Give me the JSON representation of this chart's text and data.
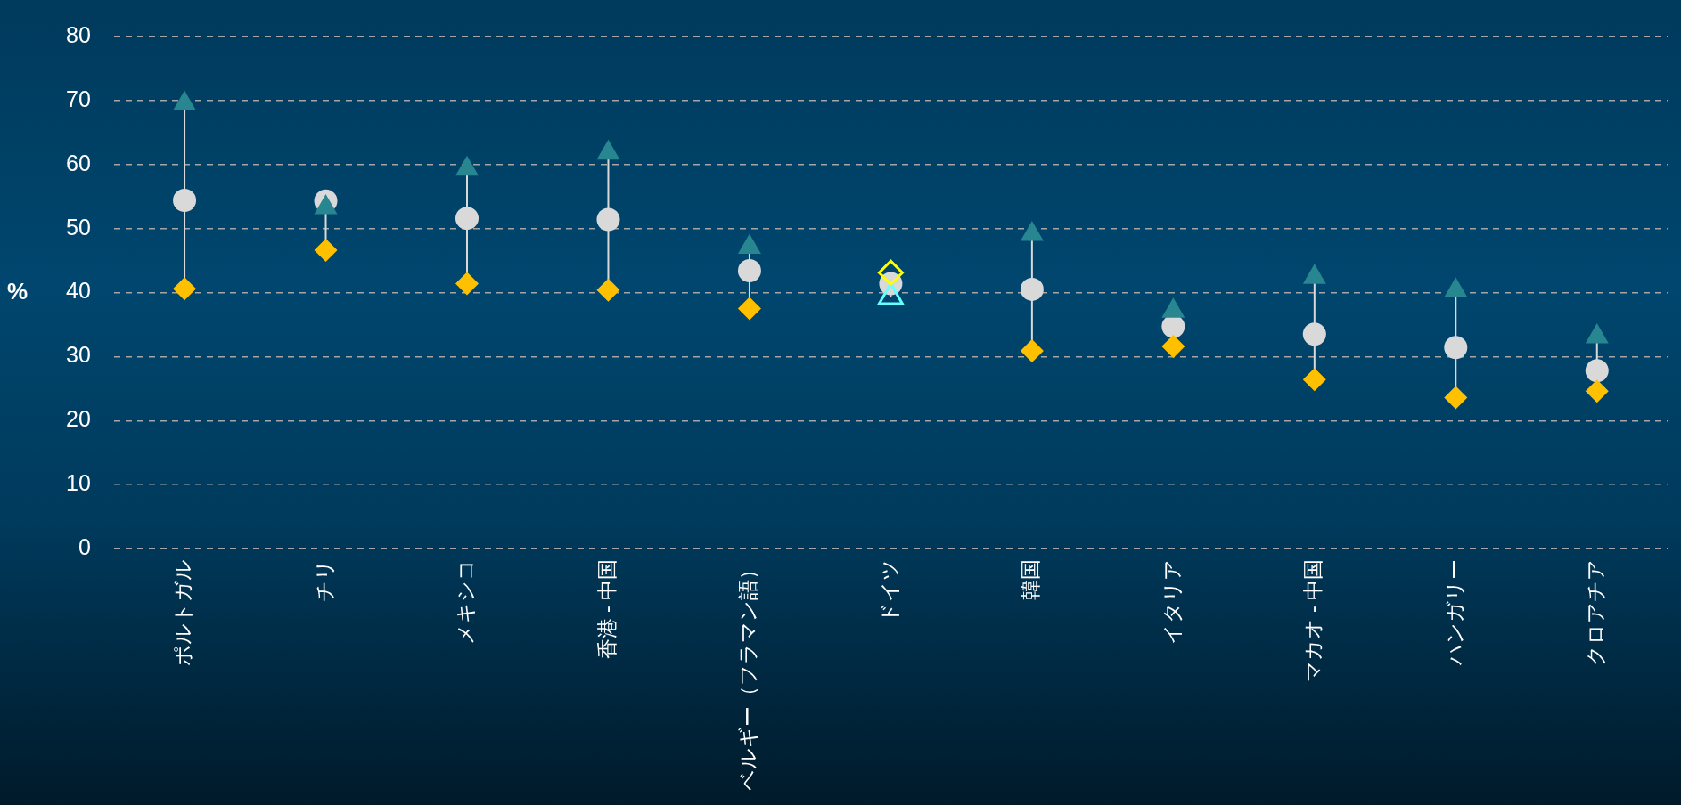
{
  "chart_data": {
    "type": "scatter",
    "ylabel": "%",
    "categories": [
      "ポルトガル",
      "チリ",
      "メキシコ",
      "香港 - 中国",
      "ベルギー（フラマン語）",
      "ドイツ",
      "韓国",
      "イタリア",
      "マカオ - 中国",
      "ハンガリー",
      "クロアチア"
    ],
    "series": [
      {
        "marker": "circle",
        "color": "#d9d9d9",
        "values": [
          54.4,
          54.3,
          51.6,
          51.4,
          43.4,
          41.4,
          40.5,
          34.7,
          33.5,
          31.4,
          27.8
        ]
      },
      {
        "marker": "triangle",
        "color": "#27868f",
        "colors": [
          "#27868f",
          "#27868f",
          "#27868f",
          "#27868f",
          "#27868f",
          "#66ffff",
          "#27868f",
          "#27868f",
          "#27868f",
          "#27868f",
          "#27868f"
        ],
        "values": [
          69.5,
          53.3,
          59.3,
          61.8,
          47.1,
          39.3,
          49.1,
          37.1,
          42.4,
          40.3,
          33.1
        ]
      },
      {
        "marker": "diamond",
        "color": "#ffc000",
        "colors": [
          "#ffc000",
          "#ffc000",
          "#ffc000",
          "#ffc000",
          "#ffc000",
          "#ffff00",
          "#ffc000",
          "#ffc000",
          "#ffc000",
          "#ffc000",
          "#ffc000"
        ],
        "values": [
          40.6,
          46.6,
          41.4,
          40.4,
          37.5,
          43.1,
          30.9,
          31.6,
          26.4,
          23.6,
          24.6
        ]
      }
    ],
    "ylim": [
      0,
      80
    ],
    "yticks": [
      0,
      10,
      20,
      30,
      40,
      50,
      60,
      70,
      80
    ],
    "grid": "y",
    "legend": false
  }
}
